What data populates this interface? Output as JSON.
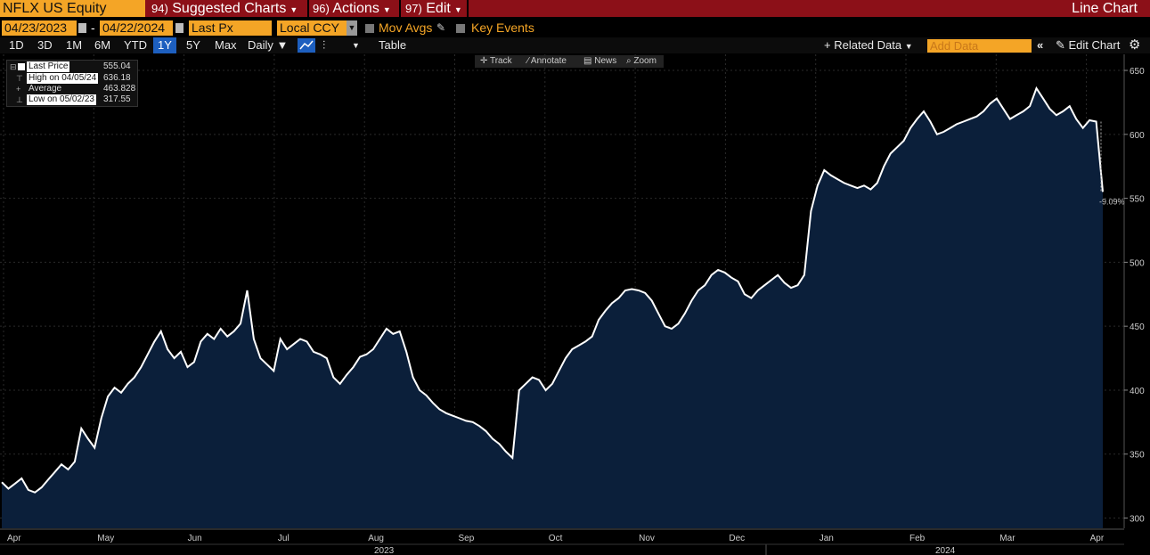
{
  "header": {
    "ticker": "NFLX US Equity",
    "menus": [
      {
        "num": "94)",
        "label": "Suggested Charts"
      },
      {
        "num": "96)",
        "label": "Actions"
      },
      {
        "num": "97)",
        "label": "Edit"
      }
    ],
    "chart_type": "Line Chart"
  },
  "controls": {
    "start_date": "04/23/2023",
    "end_date": "04/22/2024",
    "date_separator": "-",
    "field": "Last Px",
    "currency": "Local CCY",
    "mov_avgs": "Mov Avgs",
    "key_events": "Key Events"
  },
  "periods": [
    "1D",
    "3D",
    "1M",
    "6M",
    "YTD",
    "1Y",
    "5Y",
    "Max"
  ],
  "selected_period": "1Y",
  "frequency": "Daily",
  "table_label": "Table",
  "related_data": "Related Data",
  "add_data_placeholder": "Add Data",
  "edit_chart": "Edit Chart",
  "tools": [
    "Track",
    "Annotate",
    "News",
    "Zoom"
  ],
  "legend": [
    {
      "label": "Last Price",
      "value": "555.04"
    },
    {
      "label": "High on 04/05/24",
      "value": "636.18"
    },
    {
      "label": "Average",
      "value": "463.828"
    },
    {
      "label": "Low on 05/02/23",
      "value": "317.55"
    }
  ],
  "colors": {
    "accent": "#f4a526",
    "header_red": "#8c1018",
    "area_fill": "#0b1f3a",
    "line": "#ffffff",
    "select_blue": "#1d5fbf"
  },
  "chart_data": {
    "type": "area",
    "yticks": [
      300,
      350,
      400,
      450,
      500,
      550,
      600,
      650
    ],
    "ylim": [
      292,
      657
    ],
    "x_month_labels": [
      "Apr",
      "May",
      "Jun",
      "Jul",
      "Aug",
      "Sep",
      "Oct",
      "Nov",
      "Dec",
      "Jan",
      "Feb",
      "Mar",
      "Apr"
    ],
    "year_labels": [
      "2023",
      "2024"
    ],
    "end_annotation": "-9.09%",
    "series": [
      {
        "values": [
          328,
          323,
          327,
          331,
          322,
          320,
          324,
          330,
          336,
          342,
          338,
          344,
          370,
          362,
          355,
          378,
          395,
          402,
          398,
          405,
          410,
          418,
          428,
          438,
          446,
          432,
          425,
          430,
          418,
          422,
          438,
          444,
          440,
          448,
          442,
          446,
          452,
          478,
          440,
          425,
          420,
          415,
          440,
          432,
          436,
          440,
          438,
          430,
          428,
          425,
          410,
          405,
          412,
          418,
          426,
          428,
          432,
          440,
          448,
          444,
          446,
          430,
          410,
          400,
          396,
          390,
          385,
          382,
          380,
          378,
          376,
          375,
          372,
          368,
          362,
          358,
          352,
          347,
          400,
          405,
          410,
          408,
          400,
          405,
          415,
          425,
          432,
          435,
          438,
          442,
          455,
          462,
          468,
          472,
          478,
          479,
          478,
          476,
          470,
          460,
          450,
          448,
          452,
          460,
          470,
          478,
          482,
          490,
          494,
          492,
          488,
          485,
          475,
          472,
          478,
          482,
          486,
          490,
          484,
          480,
          482,
          490,
          540,
          560,
          572,
          568,
          565,
          562,
          560,
          558,
          560,
          557,
          562,
          575,
          585,
          590,
          595,
          605,
          612,
          618,
          610,
          600,
          602,
          605,
          608,
          610,
          612,
          614,
          618,
          624,
          628,
          620,
          612,
          615,
          618,
          622,
          636,
          628,
          620,
          615,
          618,
          622,
          612,
          605,
          611,
          610,
          555
        ]
      }
    ]
  }
}
